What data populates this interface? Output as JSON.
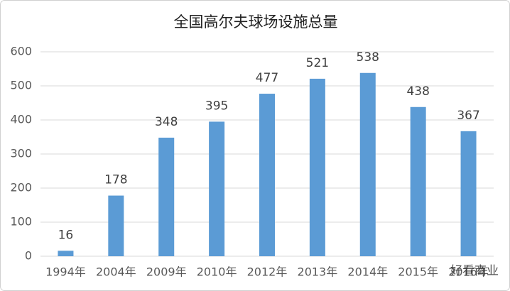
{
  "chart_data": {
    "type": "bar",
    "title": "全国高尔夫球场设施总量",
    "categories": [
      "1994年",
      "2004年",
      "2009年",
      "2010年",
      "2012年",
      "2013年",
      "2014年",
      "2015年",
      "2016年"
    ],
    "values": [
      16,
      178,
      348,
      395,
      477,
      521,
      538,
      438,
      367
    ],
    "color": "#5b9bd5",
    "ylim": [
      0,
      600
    ],
    "yticks": [
      0,
      100,
      200,
      300,
      400,
      500,
      600
    ],
    "grid": true,
    "watermark": "好看商业"
  }
}
